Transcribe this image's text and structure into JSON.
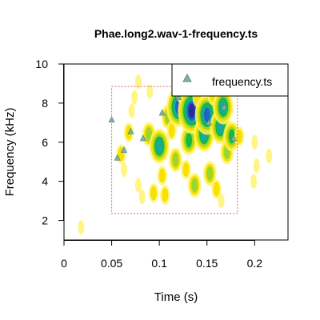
{
  "chart_data": {
    "type": "contour",
    "title": "Phae.long2.wav-1-frequency.ts",
    "xlabel": "Time (s)",
    "ylabel": "Frequency (kHz)",
    "xlim": [
      0,
      0.235
    ],
    "ylim": [
      1,
      10
    ],
    "xticks": [
      {
        "value": 0,
        "label": "0"
      },
      {
        "value": 0.05,
        "label": "0.05"
      },
      {
        "value": 0.1,
        "label": "0.1"
      },
      {
        "value": 0.15,
        "label": "0.15"
      },
      {
        "value": 0.2,
        "label": "0.2"
      }
    ],
    "yticks": [
      {
        "value": 2,
        "label": "2"
      },
      {
        "value": 4,
        "label": "4"
      },
      {
        "value": 6,
        "label": "6"
      },
      {
        "value": 8,
        "label": "8"
      },
      {
        "value": 10,
        "label": "10"
      }
    ],
    "legend": {
      "position": "top-right",
      "entries": [
        {
          "label": "frequency.ts",
          "marker": "triangle",
          "color": "#7fb2a4"
        }
      ]
    },
    "selection_box": {
      "x": [
        0.05,
        0.182
      ],
      "y": [
        2.35,
        8.85
      ],
      "color": "#e06666"
    },
    "frequency_ts": [
      {
        "x": 0.05,
        "y": 7.15
      },
      {
        "x": 0.056,
        "y": 5.2
      },
      {
        "x": 0.063,
        "y": 5.6
      },
      {
        "x": 0.07,
        "y": 6.55
      },
      {
        "x": 0.083,
        "y": 6.2
      },
      {
        "x": 0.103,
        "y": 7.5
      },
      {
        "x": 0.12,
        "y": 8.3
      },
      {
        "x": 0.152,
        "y": 7.0
      },
      {
        "x": 0.168,
        "y": 7.8
      },
      {
        "x": 0.178,
        "y": 6.2
      }
    ],
    "contour_colors": [
      "#fff36e",
      "#f6e100",
      "#9bd62c",
      "#17b83f",
      "#1aa8a0",
      "#1f64c0",
      "#2a2aa0"
    ],
    "contour_blobs": [
      {
        "x": 0.018,
        "y": 1.65,
        "level": 0
      },
      {
        "x": 0.06,
        "y": 5.4,
        "level": 1
      },
      {
        "x": 0.063,
        "y": 4.6,
        "level": 0
      },
      {
        "x": 0.068,
        "y": 6.5,
        "level": 1
      },
      {
        "x": 0.071,
        "y": 7.6,
        "level": 0
      },
      {
        "x": 0.074,
        "y": 8.3,
        "level": 0
      },
      {
        "x": 0.078,
        "y": 3.8,
        "level": 0
      },
      {
        "x": 0.082,
        "y": 3.2,
        "level": 0
      },
      {
        "x": 0.089,
        "y": 6.4,
        "level": 2
      },
      {
        "x": 0.094,
        "y": 3.4,
        "level": 1
      },
      {
        "x": 0.1,
        "y": 5.8,
        "level": 4
      },
      {
        "x": 0.103,
        "y": 4.3,
        "level": 1
      },
      {
        "x": 0.106,
        "y": 3.3,
        "level": 1
      },
      {
        "x": 0.109,
        "y": 7.3,
        "level": 2
      },
      {
        "x": 0.113,
        "y": 6.6,
        "level": 1
      },
      {
        "x": 0.117,
        "y": 5.1,
        "level": 2
      },
      {
        "x": 0.12,
        "y": 7.8,
        "level": 5
      },
      {
        "x": 0.124,
        "y": 8.6,
        "level": 2
      },
      {
        "x": 0.128,
        "y": 4.6,
        "level": 1
      },
      {
        "x": 0.131,
        "y": 6.1,
        "level": 3
      },
      {
        "x": 0.134,
        "y": 7.6,
        "level": 6
      },
      {
        "x": 0.137,
        "y": 3.8,
        "level": 2
      },
      {
        "x": 0.14,
        "y": 8.3,
        "level": 1
      },
      {
        "x": 0.147,
        "y": 6.4,
        "level": 4
      },
      {
        "x": 0.15,
        "y": 7.4,
        "level": 5
      },
      {
        "x": 0.153,
        "y": 4.4,
        "level": 2
      },
      {
        "x": 0.156,
        "y": 8.4,
        "level": 1
      },
      {
        "x": 0.16,
        "y": 3.6,
        "level": 1
      },
      {
        "x": 0.164,
        "y": 6.8,
        "level": 4
      },
      {
        "x": 0.167,
        "y": 7.8,
        "level": 4
      },
      {
        "x": 0.171,
        "y": 5.5,
        "level": 2
      },
      {
        "x": 0.176,
        "y": 6.3,
        "level": 3
      },
      {
        "x": 0.184,
        "y": 6.3,
        "level": 1
      },
      {
        "x": 0.2,
        "y": 6.0,
        "level": 0
      },
      {
        "x": 0.202,
        "y": 4.8,
        "level": 0
      },
      {
        "x": 0.215,
        "y": 5.3,
        "level": 0
      },
      {
        "x": 0.199,
        "y": 4.0,
        "level": 0
      },
      {
        "x": 0.165,
        "y": 3.0,
        "level": 0
      },
      {
        "x": 0.09,
        "y": 8.6,
        "level": 0
      },
      {
        "x": 0.078,
        "y": 9.1,
        "level": 0
      }
    ]
  }
}
